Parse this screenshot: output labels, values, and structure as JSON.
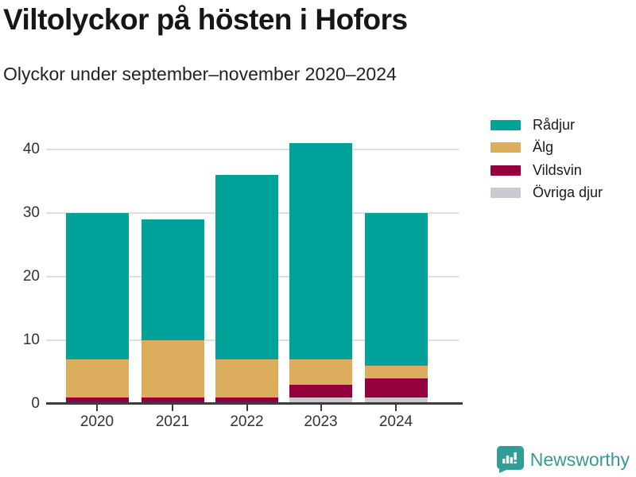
{
  "chart_data": {
    "type": "bar",
    "stacked": true,
    "title": "Viltolyckor på hösten i Hofors",
    "subtitle": "Olyckor under september–november 2020–2024",
    "categories": [
      "2020",
      "2021",
      "2022",
      "2023",
      "2024"
    ],
    "series": [
      {
        "name": "Rådjur",
        "color": "#00A29A",
        "values": [
          23,
          19,
          29,
          34,
          24
        ]
      },
      {
        "name": "Älg",
        "color": "#DBAD5C",
        "values": [
          6,
          9,
          6,
          4,
          2
        ]
      },
      {
        "name": "Vildsvin",
        "color": "#94003E",
        "values": [
          1,
          1,
          1,
          2,
          3
        ]
      },
      {
        "name": "Övriga djur",
        "color": "#C9C9D3",
        "values": [
          0,
          0,
          0,
          1,
          1
        ]
      }
    ],
    "stack_order_bottom_to_top": [
      "Övriga djur",
      "Vildsvin",
      "Älg",
      "Rådjur"
    ],
    "totals": [
      30,
      29,
      36,
      41,
      30
    ],
    "xlabel": "",
    "ylabel": "",
    "ylim": [
      0,
      45
    ],
    "yticks": [
      0,
      10,
      20,
      30,
      40
    ],
    "grid": "horizontal",
    "legend_position": "top-right"
  },
  "footer": {
    "brand": "Newsworthy",
    "brand_color": "#359B94",
    "logo_icon": "bar-chart-speech-bubble-icon",
    "logo_color": "#2E9E96"
  }
}
